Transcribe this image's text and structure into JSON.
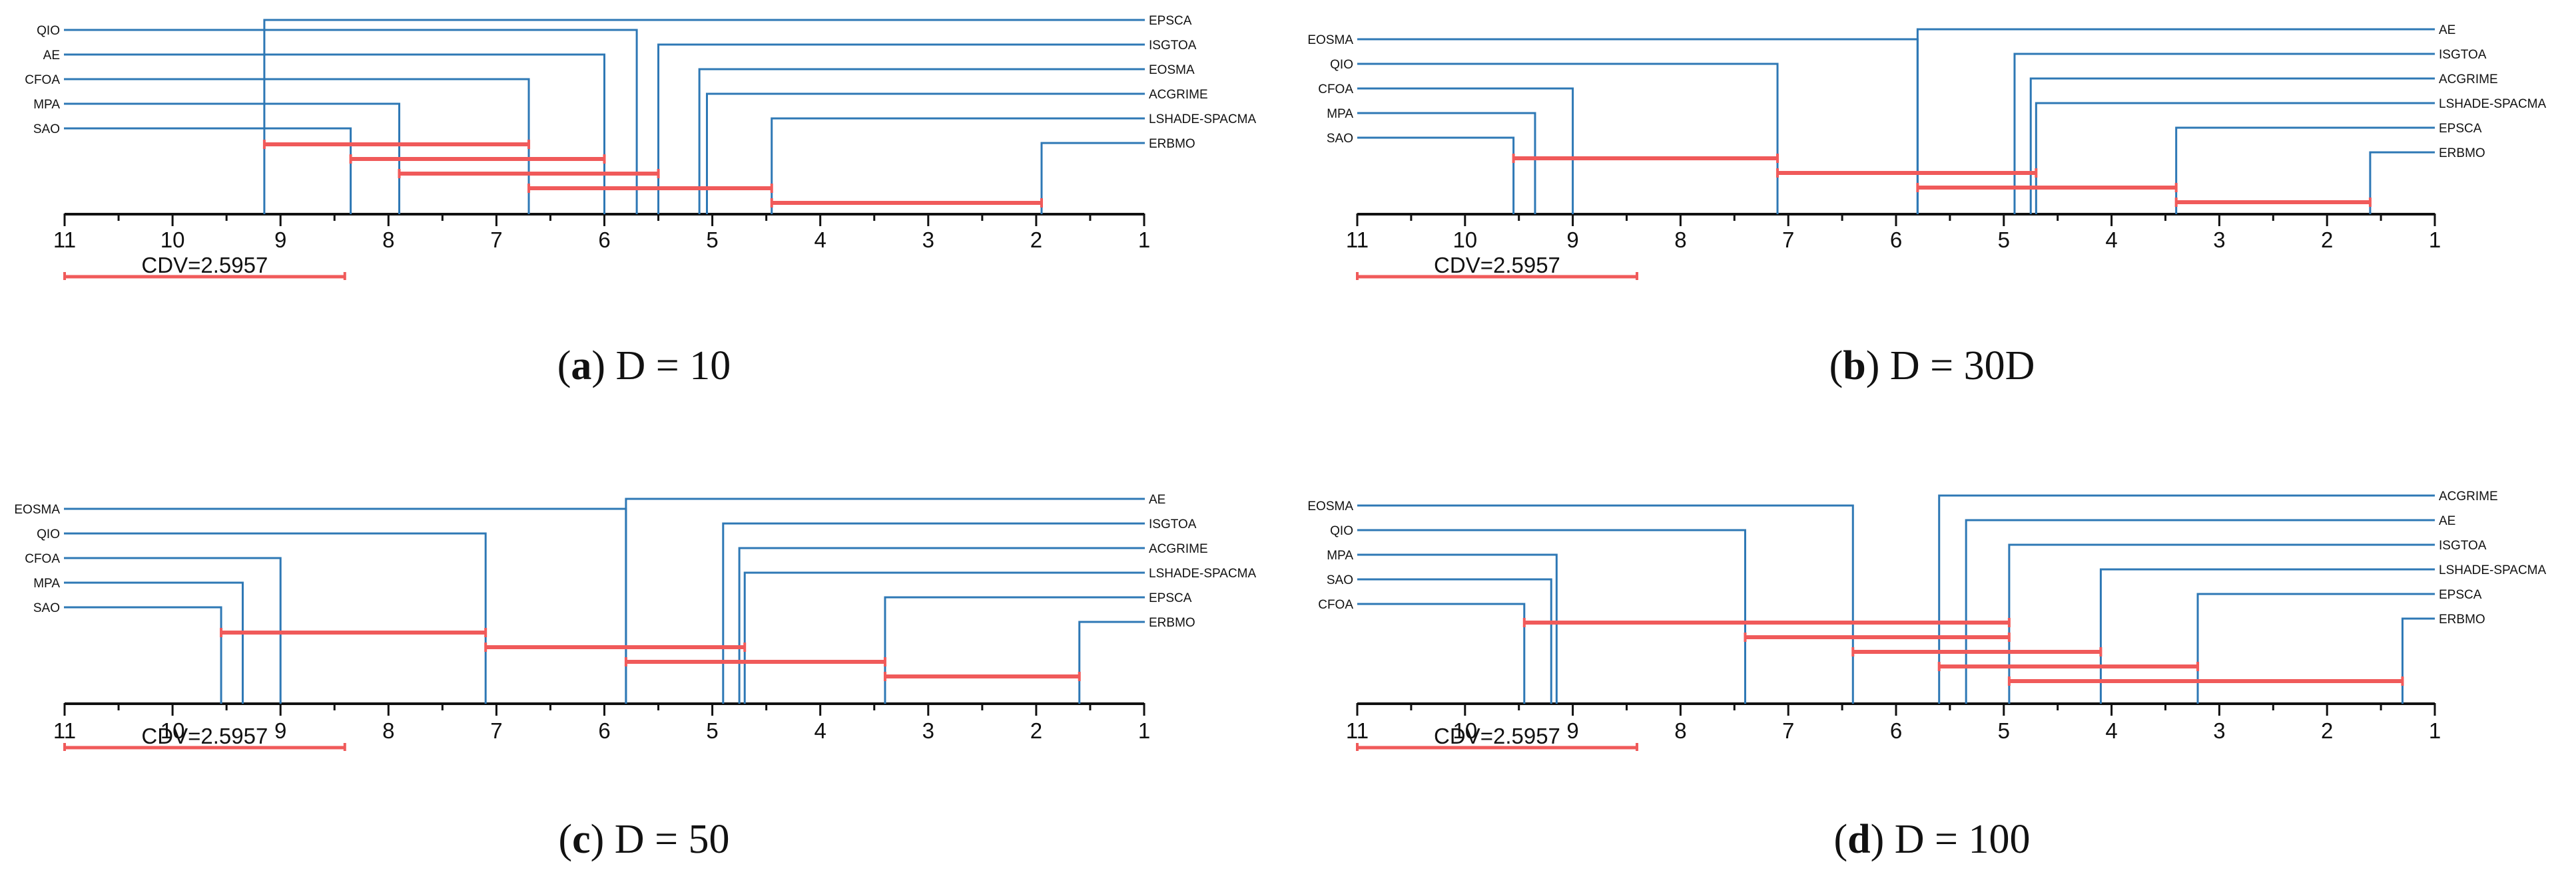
{
  "colors": {
    "axis": "#111111",
    "line": "#2e78b5",
    "clique": "#f05a5a"
  },
  "chart_data": [
    {
      "type": "critical-difference-diagram",
      "caption_letter": "a",
      "caption_text": " D = 10",
      "axis_range": [
        11,
        1
      ],
      "ticks": [
        "11",
        "10",
        "9",
        "8",
        "7",
        "6",
        "5",
        "4",
        "3",
        "2",
        "1"
      ],
      "cd_label": "CDV=2.5957",
      "cd_value": 2.5957,
      "left_algorithms": [
        {
          "name": "QIO",
          "rank": 5.7
        },
        {
          "name": "AE",
          "rank": 6.0
        },
        {
          "name": "CFOA",
          "rank": 6.7
        },
        {
          "name": "MPA",
          "rank": 7.9
        },
        {
          "name": "SAO",
          "rank": 8.35
        }
      ],
      "right_algorithms": [
        {
          "name": "EPSCA",
          "rank": 9.15
        },
        {
          "name": "ISGTOA",
          "rank": 5.5
        },
        {
          "name": "EOSMA",
          "rank": 5.12
        },
        {
          "name": "ACGRIME",
          "rank": 5.05
        },
        {
          "name": "LSHADE-SPACMA",
          "rank": 4.45
        },
        {
          "name": "ERBMO",
          "rank": 1.95
        }
      ],
      "cliques": [
        [
          9.15,
          6.7
        ],
        [
          8.35,
          6.0
        ],
        [
          7.9,
          5.5
        ],
        [
          6.7,
          4.45
        ],
        [
          4.45,
          1.95
        ]
      ]
    },
    {
      "type": "critical-difference-diagram",
      "caption_letter": "b",
      "caption_text": " D = 30D",
      "axis_range": [
        11,
        1
      ],
      "ticks": [
        "11",
        "10",
        "9",
        "8",
        "7",
        "6",
        "5",
        "4",
        "3",
        "2",
        "1"
      ],
      "cd_label": "CDV=2.5957",
      "cd_value": 2.5957,
      "left_algorithms": [
        {
          "name": "EOSMA",
          "rank": 5.8
        },
        {
          "name": "QIO",
          "rank": 7.1
        },
        {
          "name": "CFOA",
          "rank": 9.0
        },
        {
          "name": "MPA",
          "rank": 9.35
        },
        {
          "name": "SAO",
          "rank": 9.55
        }
      ],
      "right_algorithms": [
        {
          "name": "AE",
          "rank": 5.8
        },
        {
          "name": "ISGTOA",
          "rank": 4.9
        },
        {
          "name": "ACGRIME",
          "rank": 4.75
        },
        {
          "name": "LSHADE-SPACMA",
          "rank": 4.7
        },
        {
          "name": "EPSCA",
          "rank": 3.4
        },
        {
          "name": "ERBMO",
          "rank": 1.6
        }
      ],
      "cliques": [
        [
          9.55,
          7.1
        ],
        [
          7.1,
          4.7
        ],
        [
          5.8,
          3.4
        ],
        [
          3.4,
          1.6
        ]
      ]
    },
    {
      "type": "critical-difference-diagram",
      "caption_letter": "c",
      "caption_text": " D = 50",
      "axis_range": [
        11,
        1
      ],
      "ticks": [
        "11",
        "10",
        "9",
        "8",
        "7",
        "6",
        "5",
        "4",
        "3",
        "2",
        "1"
      ],
      "cd_label": "CDV=2.5957",
      "cd_value": 2.5957,
      "left_algorithms": [
        {
          "name": "EOSMA",
          "rank": 5.8
        },
        {
          "name": "QIO",
          "rank": 7.1
        },
        {
          "name": "CFOA",
          "rank": 9.0
        },
        {
          "name": "MPA",
          "rank": 9.35
        },
        {
          "name": "SAO",
          "rank": 9.55
        }
      ],
      "right_algorithms": [
        {
          "name": "AE",
          "rank": 5.8
        },
        {
          "name": "ISGTOA",
          "rank": 4.9
        },
        {
          "name": "ACGRIME",
          "rank": 4.75
        },
        {
          "name": "LSHADE-SPACMA",
          "rank": 4.7
        },
        {
          "name": "EPSCA",
          "rank": 3.4
        },
        {
          "name": "ERBMO",
          "rank": 1.6
        }
      ],
      "cliques": [
        [
          9.55,
          7.1
        ],
        [
          7.1,
          4.7
        ],
        [
          5.8,
          3.4
        ],
        [
          3.4,
          1.6
        ]
      ]
    },
    {
      "type": "critical-difference-diagram",
      "caption_letter": "d",
      "caption_text": " D = 100",
      "axis_range": [
        11,
        1
      ],
      "ticks": [
        "11",
        "10",
        "9",
        "8",
        "7",
        "6",
        "5",
        "4",
        "3",
        "2",
        "1"
      ],
      "cd_label": "CDV=2.5957",
      "cd_value": 2.5957,
      "left_algorithms": [
        {
          "name": "EOSMA",
          "rank": 6.4
        },
        {
          "name": "QIO",
          "rank": 7.4
        },
        {
          "name": "MPA",
          "rank": 9.15
        },
        {
          "name": "SAO",
          "rank": 9.2
        },
        {
          "name": "CFOA",
          "rank": 9.45
        }
      ],
      "right_algorithms": [
        {
          "name": "ACGRIME",
          "rank": 5.6
        },
        {
          "name": "AE",
          "rank": 5.35
        },
        {
          "name": "ISGTOA",
          "rank": 4.95
        },
        {
          "name": "LSHADE-SPACMA",
          "rank": 4.1
        },
        {
          "name": "EPSCA",
          "rank": 3.2
        },
        {
          "name": "ERBMO",
          "rank": 1.3
        }
      ],
      "cliques": [
        [
          9.45,
          4.95
        ],
        [
          7.4,
          4.95
        ],
        [
          6.4,
          4.1
        ],
        [
          5.6,
          3.2
        ],
        [
          4.95,
          1.3
        ]
      ]
    }
  ]
}
